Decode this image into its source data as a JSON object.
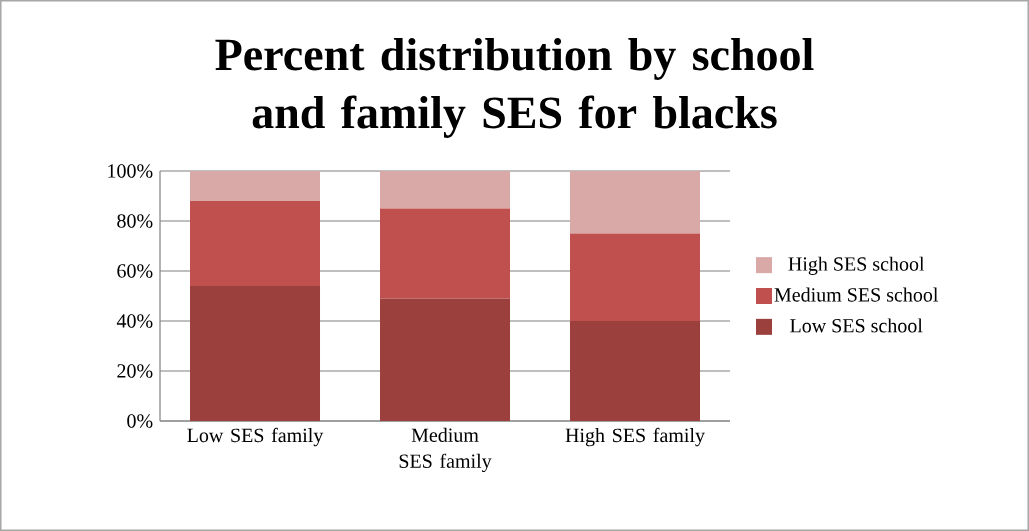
{
  "chart_data": {
    "type": "bar",
    "stacked": true,
    "title": "Percent distribution by school and family SES for blacks",
    "categories": [
      "Low SES family",
      "Medium SES family",
      "High SES family"
    ],
    "series": [
      {
        "name": "Low SES school",
        "color": "#9c403e",
        "values": [
          54,
          49,
          40
        ]
      },
      {
        "name": "Medium SES school",
        "color": "#c0504d",
        "values": [
          34,
          36,
          35
        ]
      },
      {
        "name": "High SES school",
        "color": "#d9a9a8",
        "values": [
          12,
          15,
          25
        ]
      }
    ],
    "ylim": [
      0,
      100
    ],
    "yticks": [
      {
        "value": 0,
        "label": "0%"
      },
      {
        "value": 20,
        "label": "20%"
      },
      {
        "value": 40,
        "label": "40%"
      },
      {
        "value": 60,
        "label": "60%"
      },
      {
        "value": 80,
        "label": "80%"
      },
      {
        "value": 100,
        "label": "100%"
      }
    ],
    "grid": "y",
    "legend": "right"
  }
}
